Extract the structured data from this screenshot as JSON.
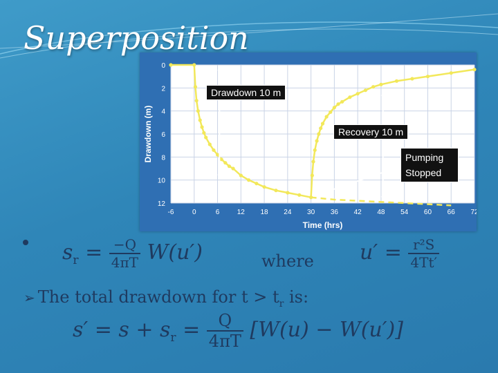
{
  "title": "Superposition",
  "chart_data": {
    "type": "line",
    "xlabel": "Time (hrs)",
    "ylabel": "Drawdown (m)",
    "xlim": [
      -6,
      72
    ],
    "ylim": [
      0,
      12
    ],
    "y_inverted": true,
    "x_ticks": [
      -6,
      0,
      6,
      12,
      18,
      24,
      30,
      36,
      42,
      48,
      54,
      60,
      66,
      72
    ],
    "y_ticks": [
      0,
      2,
      4,
      6,
      8,
      10,
      12
    ],
    "grid": true,
    "series": [
      {
        "style": "pumping",
        "x": [
          -6,
          0,
          0.3,
          0.6,
          1,
          1.5,
          2,
          2.5,
          3,
          4,
          5,
          6,
          7,
          8,
          9,
          10,
          12,
          14,
          16,
          18,
          21,
          24,
          27,
          30
        ],
        "values": [
          0,
          0,
          1.9,
          3.1,
          4.0,
          4.8,
          5.4,
          5.9,
          6.3,
          6.9,
          7.4,
          7.8,
          8.2,
          8.5,
          8.8,
          9.0,
          9.6,
          10.0,
          10.3,
          10.6,
          10.9,
          11.1,
          11.3,
          11.5
        ]
      },
      {
        "style": "continued-pumping",
        "x": [
          30,
          36,
          42,
          48,
          54,
          60,
          66
        ],
        "values": [
          11.5,
          11.7,
          11.8,
          11.9,
          12.0,
          12.1,
          12.2
        ]
      },
      {
        "style": "recovery",
        "x": [
          30,
          30.3,
          30.6,
          31,
          31.5,
          32,
          32.5,
          33,
          34,
          35,
          36,
          37,
          38,
          40,
          42,
          44,
          46,
          48,
          52,
          56,
          60,
          66,
          72
        ],
        "values": [
          11.5,
          9.6,
          8.4,
          7.4,
          6.6,
          6.0,
          5.5,
          5.1,
          4.5,
          4.1,
          3.7,
          3.4,
          3.2,
          2.8,
          2.5,
          2.2,
          1.9,
          1.7,
          1.4,
          1.2,
          1.0,
          0.7,
          0.4
        ]
      }
    ],
    "annotations": [
      {
        "text": "Drawdown 10 m"
      },
      {
        "text": "Recovery 10 m"
      },
      {
        "text": "Pumping Stopped"
      }
    ]
  },
  "equations": {
    "sr_lhs": "s",
    "sr_sub": "r",
    "sr_num": "−Q",
    "sr_den": "4πT",
    "sr_rhs": "W(u′)",
    "where": "where",
    "u_lhs": "u′",
    "u_num": "r²S",
    "u_den": "4Tt′",
    "total_lhs": "s′ = s + s",
    "total_sub": "r",
    "total_num": "Q",
    "total_den": "4πT",
    "total_rhs": "[W(u) − W(u′)]"
  },
  "bullet": {
    "text_before": "The total drawdown for t > t",
    "sub": "r",
    "text_after": " is:"
  },
  "colors": {
    "series": "#f2e85a",
    "plot_bg": "#ffffff",
    "frame": "#2f6fb3"
  }
}
